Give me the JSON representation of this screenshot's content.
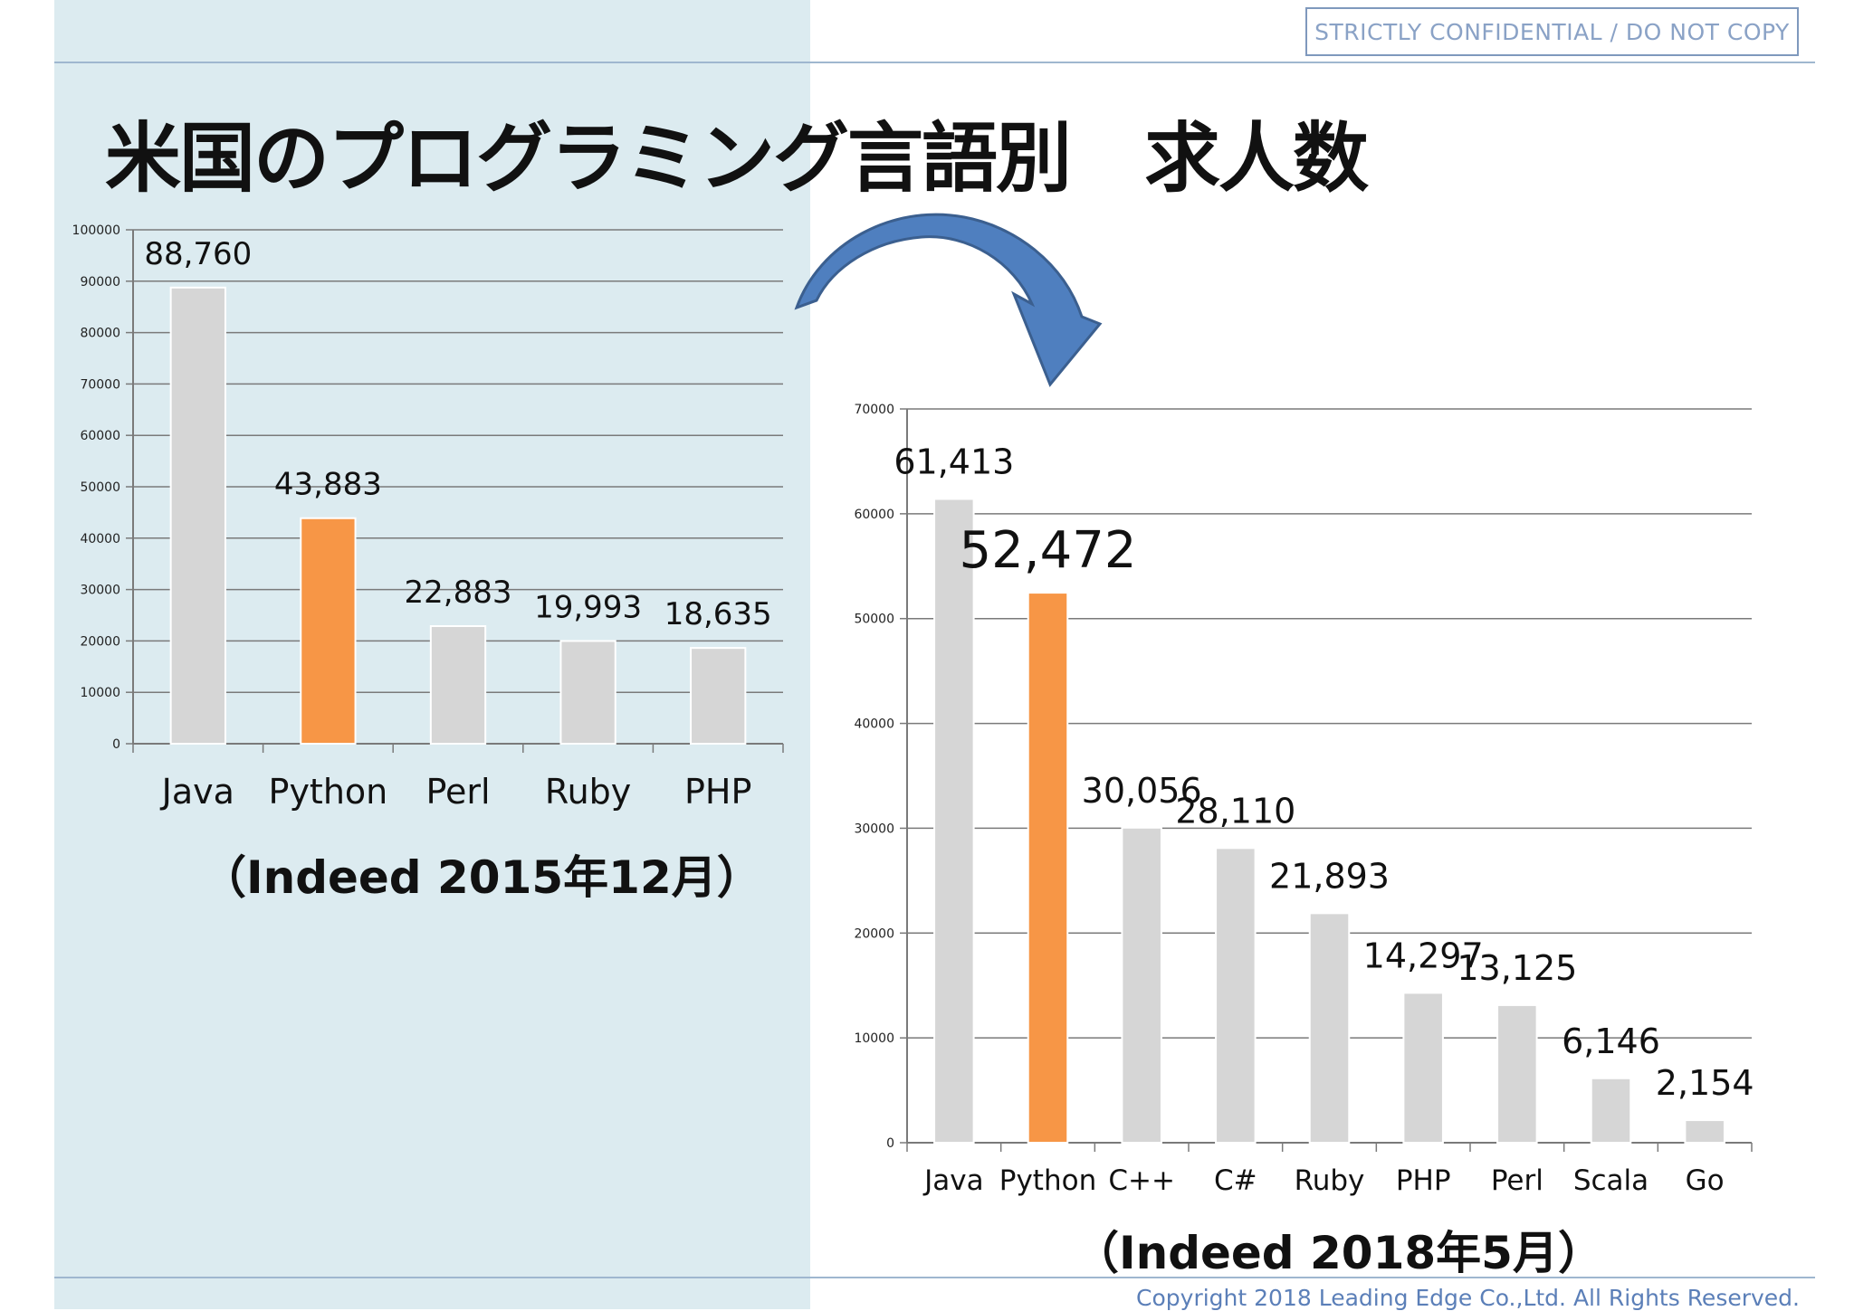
{
  "header": {
    "confidential": "STRICTLY CONFIDENTIAL  /  DO NOT COPY"
  },
  "title": "米国のプログラミング言語別　求人数",
  "footer": {
    "copyright": "Copyright 2018 Leading Edge Co.,Ltd. All Rights Reserved."
  },
  "colors": {
    "bar_default": "#d6d6d6",
    "bar_highlight": "#f79646",
    "arrow": "#4f7fbf",
    "left_panel": "#dcebf0"
  },
  "chart_data": [
    {
      "type": "bar",
      "caption": "（Indeed 2015年12月）",
      "categories": [
        "Java",
        "Python",
        "Perl",
        "Ruby",
        "PHP"
      ],
      "values": [
        88760,
        43883,
        22883,
        19993,
        18635
      ],
      "data_labels": [
        "88,760",
        "43,883",
        "22,883",
        "19,993",
        "18,635"
      ],
      "highlight": "Python",
      "ylim": [
        0,
        100000
      ],
      "yticks": [
        0,
        10000,
        20000,
        30000,
        40000,
        50000,
        60000,
        70000,
        80000,
        90000,
        100000
      ],
      "grid": true
    },
    {
      "type": "bar",
      "caption": "（Indeed 2018年5月）",
      "categories": [
        "Java",
        "Python",
        "C++",
        "C#",
        "Ruby",
        "PHP",
        "Perl",
        "Scala",
        "Go"
      ],
      "values": [
        61413,
        52472,
        30056,
        28110,
        21893,
        14297,
        13125,
        6146,
        2154
      ],
      "data_labels": [
        "61,413",
        "52,472",
        "30,056",
        "28,110",
        "21,893",
        "14,297",
        "13,125",
        "6,146",
        "2,154"
      ],
      "highlight": "Python",
      "ylim": [
        0,
        70000
      ],
      "yticks": [
        0,
        10000,
        20000,
        30000,
        40000,
        50000,
        60000,
        70000
      ],
      "grid": true
    }
  ]
}
